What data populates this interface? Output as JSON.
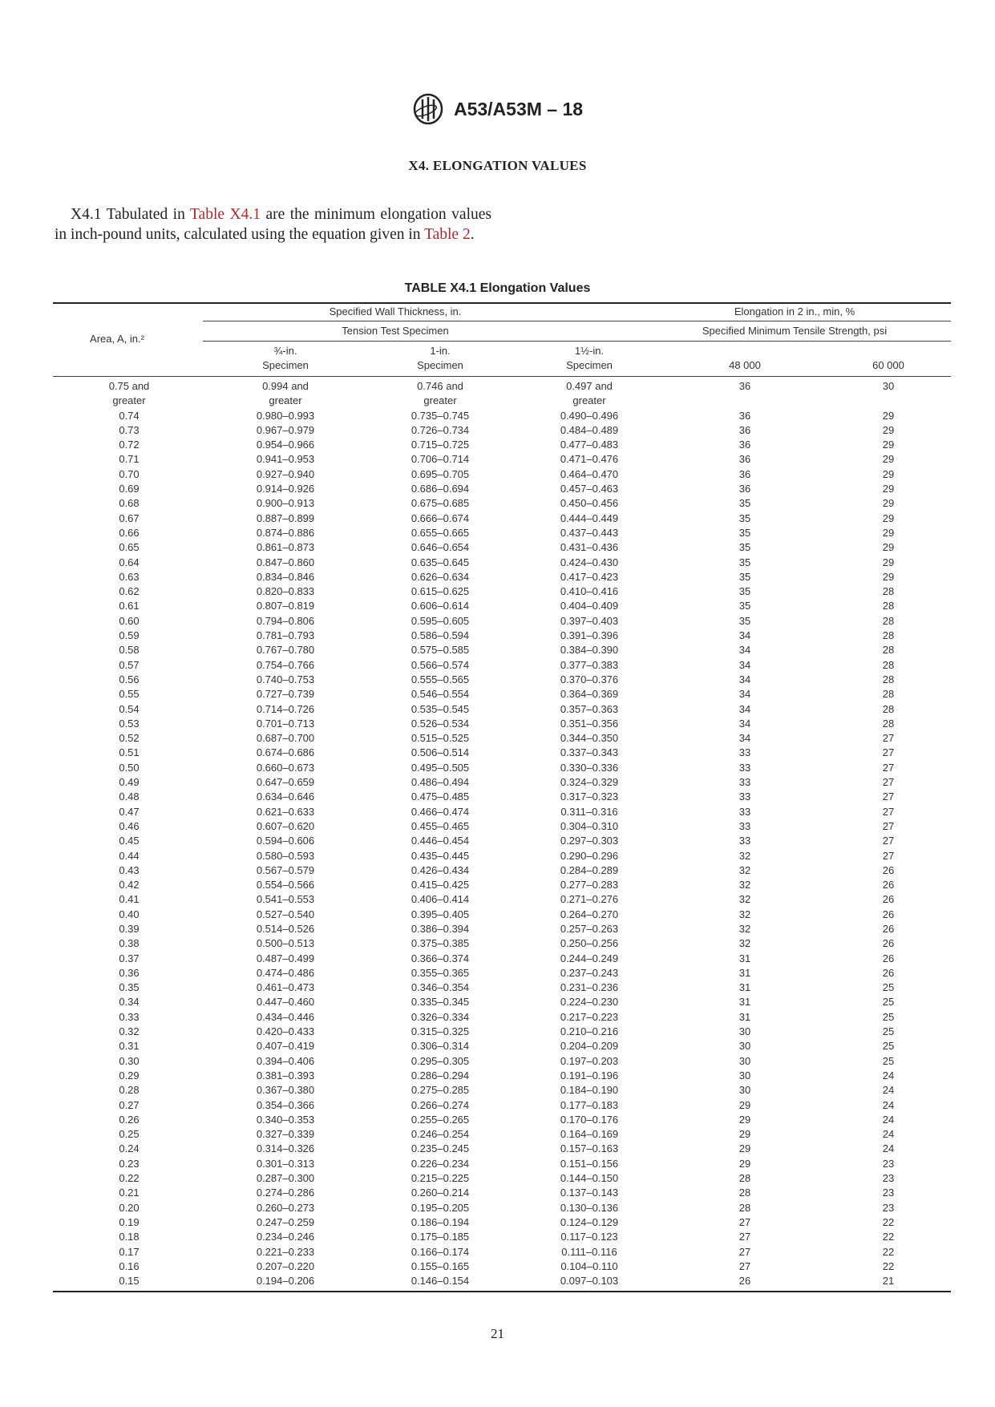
{
  "header": {
    "logo_text": "ASTM",
    "code": "A53/A53M – 18"
  },
  "section_title": "X4. ELONGATION VALUES",
  "paragraph": {
    "lead": "X4.1 Tabulated in ",
    "link1": "Table X4.1",
    "middle": " are the minimum elongation values in inch-pound units, calculated using the equation given in ",
    "link2": "Table 2",
    "end": "."
  },
  "table": {
    "caption": "TABLE X4.1 Elongation Values",
    "headers": {
      "area": "Area, A, in.²",
      "wall_thickness": "Specified Wall Thickness, in.",
      "tension_specimen": "Tension Test Specimen",
      "elongation": "Elongation in 2 in., min, %",
      "tensile_strength": "Specified Minimum Tensile Strength, psi",
      "spec_3_4": [
        "¾-in.",
        "Specimen"
      ],
      "spec_1": [
        "1-in.",
        "Specimen"
      ],
      "spec_1_1_2": [
        "1½-in.",
        "Specimen"
      ],
      "psi_48000": "48 000",
      "psi_60000": "60 000"
    },
    "rows": [
      [
        "0.75 and greater",
        "0.994 and greater",
        "0.746 and greater",
        "0.497 and greater",
        "36",
        "30"
      ],
      [
        "0.74",
        "0.980–0.993",
        "0.735–0.745",
        "0.490–0.496",
        "36",
        "29"
      ],
      [
        "0.73",
        "0.967–0.979",
        "0.726–0.734",
        "0.484–0.489",
        "36",
        "29"
      ],
      [
        "0.72",
        "0.954–0.966",
        "0.715–0.725",
        "0.477–0.483",
        "36",
        "29"
      ],
      [
        "0.71",
        "0.941–0.953",
        "0.706–0.714",
        "0.471–0.476",
        "36",
        "29"
      ],
      [
        "0.70",
        "0.927–0.940",
        "0.695–0.705",
        "0.464–0.470",
        "36",
        "29"
      ],
      [
        "0.69",
        "0.914–0.926",
        "0.686–0.694",
        "0.457–0.463",
        "36",
        "29"
      ],
      [
        "0.68",
        "0.900–0.913",
        "0.675–0.685",
        "0.450–0.456",
        "35",
        "29"
      ],
      [
        "0.67",
        "0.887–0.899",
        "0.666–0.674",
        "0.444–0.449",
        "35",
        "29"
      ],
      [
        "0.66",
        "0.874–0.886",
        "0.655–0.665",
        "0.437–0.443",
        "35",
        "29"
      ],
      [
        "0.65",
        "0.861–0.873",
        "0.646–0.654",
        "0.431–0.436",
        "35",
        "29"
      ],
      [
        "0.64",
        "0.847–0.860",
        "0.635–0.645",
        "0.424–0.430",
        "35",
        "29"
      ],
      [
        "0.63",
        "0.834–0.846",
        "0.626–0.634",
        "0.417–0.423",
        "35",
        "29"
      ],
      [
        "0.62",
        "0.820–0.833",
        "0.615–0.625",
        "0.410–0.416",
        "35",
        "28"
      ],
      [
        "0.61",
        "0.807–0.819",
        "0.606–0.614",
        "0.404–0.409",
        "35",
        "28"
      ],
      [
        "0.60",
        "0.794–0.806",
        "0.595–0.605",
        "0.397–0.403",
        "35",
        "28"
      ],
      [
        "0.59",
        "0.781–0.793",
        "0.586–0.594",
        "0.391–0.396",
        "34",
        "28"
      ],
      [
        "0.58",
        "0.767–0.780",
        "0.575–0.585",
        "0.384–0.390",
        "34",
        "28"
      ],
      [
        "0.57",
        "0.754–0.766",
        "0.566–0.574",
        "0.377–0.383",
        "34",
        "28"
      ],
      [
        "0.56",
        "0.740–0.753",
        "0.555–0.565",
        "0.370–0.376",
        "34",
        "28"
      ],
      [
        "0.55",
        "0.727–0.739",
        "0.546–0.554",
        "0.364–0.369",
        "34",
        "28"
      ],
      [
        "0.54",
        "0.714–0.726",
        "0.535–0.545",
        "0.357–0.363",
        "34",
        "28"
      ],
      [
        "0.53",
        "0.701–0.713",
        "0.526–0.534",
        "0.351–0.356",
        "34",
        "28"
      ],
      [
        "0.52",
        "0.687–0.700",
        "0.515–0.525",
        "0.344–0.350",
        "34",
        "27"
      ],
      [
        "0.51",
        "0.674–0.686",
        "0.506–0.514",
        "0.337–0.343",
        "33",
        "27"
      ],
      [
        "0.50",
        "0.660–0.673",
        "0.495–0.505",
        "0.330–0.336",
        "33",
        "27"
      ],
      [
        "0.49",
        "0.647–0.659",
        "0.486–0.494",
        "0.324–0.329",
        "33",
        "27"
      ],
      [
        "0.48",
        "0.634–0.646",
        "0.475–0.485",
        "0.317–0.323",
        "33",
        "27"
      ],
      [
        "0.47",
        "0.621–0.633",
        "0.466–0.474",
        "0.311–0.316",
        "33",
        "27"
      ],
      [
        "0.46",
        "0.607–0.620",
        "0.455–0.465",
        "0.304–0.310",
        "33",
        "27"
      ],
      [
        "0.45",
        "0.594–0.606",
        "0.446–0.454",
        "0.297–0.303",
        "33",
        "27"
      ],
      [
        "0.44",
        "0.580–0.593",
        "0.435–0.445",
        "0.290–0.296",
        "32",
        "27"
      ],
      [
        "0.43",
        "0.567–0.579",
        "0.426–0.434",
        "0.284–0.289",
        "32",
        "26"
      ],
      [
        "0.42",
        "0.554–0.566",
        "0.415–0.425",
        "0.277–0.283",
        "32",
        "26"
      ],
      [
        "0.41",
        "0.541–0.553",
        "0.406–0.414",
        "0.271–0.276",
        "32",
        "26"
      ],
      [
        "0.40",
        "0.527–0.540",
        "0.395–0.405",
        "0.264–0.270",
        "32",
        "26"
      ],
      [
        "0.39",
        "0.514–0.526",
        "0.386–0.394",
        "0.257–0.263",
        "32",
        "26"
      ],
      [
        "0.38",
        "0.500–0.513",
        "0.375–0.385",
        "0.250–0.256",
        "32",
        "26"
      ],
      [
        "0.37",
        "0.487–0.499",
        "0.366–0.374",
        "0.244–0.249",
        "31",
        "26"
      ],
      [
        "0.36",
        "0.474–0.486",
        "0.355–0.365",
        "0.237–0.243",
        "31",
        "26"
      ],
      [
        "0.35",
        "0.461–0.473",
        "0.346–0.354",
        "0.231–0.236",
        "31",
        "25"
      ],
      [
        "0.34",
        "0.447–0.460",
        "0.335–0.345",
        "0.224–0.230",
        "31",
        "25"
      ],
      [
        "0.33",
        "0.434–0.446",
        "0.326–0.334",
        "0.217–0.223",
        "31",
        "25"
      ],
      [
        "0.32",
        "0.420–0.433",
        "0.315–0.325",
        "0.210–0.216",
        "30",
        "25"
      ],
      [
        "0.31",
        "0.407–0.419",
        "0.306–0.314",
        "0.204–0.209",
        "30",
        "25"
      ],
      [
        "0.30",
        "0.394–0.406",
        "0.295–0.305",
        "0.197–0.203",
        "30",
        "25"
      ],
      [
        "0.29",
        "0.381–0.393",
        "0.286–0.294",
        "0.191–0.196",
        "30",
        "24"
      ],
      [
        "0.28",
        "0.367–0.380",
        "0.275–0.285",
        "0.184–0.190",
        "30",
        "24"
      ],
      [
        "0.27",
        "0.354–0.366",
        "0.266–0.274",
        "0.177–0.183",
        "29",
        "24"
      ],
      [
        "0.26",
        "0.340–0.353",
        "0.255–0.265",
        "0.170–0.176",
        "29",
        "24"
      ],
      [
        "0.25",
        "0.327–0.339",
        "0.246–0.254",
        "0.164–0.169",
        "29",
        "24"
      ],
      [
        "0.24",
        "0.314–0.326",
        "0.235–0.245",
        "0.157–0.163",
        "29",
        "24"
      ],
      [
        "0.23",
        "0.301–0.313",
        "0.226–0.234",
        "0.151–0.156",
        "29",
        "23"
      ],
      [
        "0.22",
        "0.287–0.300",
        "0.215–0.225",
        "0.144–0.150",
        "28",
        "23"
      ],
      [
        "0.21",
        "0.274–0.286",
        "0.260–0.214",
        "0.137–0.143",
        "28",
        "23"
      ],
      [
        "0.20",
        "0.260–0.273",
        "0.195–0.205",
        "0.130–0.136",
        "28",
        "23"
      ],
      [
        "0.19",
        "0.247–0.259",
        "0.186–0.194",
        "0.124–0.129",
        "27",
        "22"
      ],
      [
        "0.18",
        "0.234–0.246",
        "0.175–0.185",
        "0.117–0.123",
        "27",
        "22"
      ],
      [
        "0.17",
        "0.221–0.233",
        "0.166–0.174",
        "0.111–0.116",
        "27",
        "22"
      ],
      [
        "0.16",
        "0.207–0.220",
        "0.155–0.165",
        "0.104–0.110",
        "27",
        "22"
      ],
      [
        "0.15",
        "0.194–0.206",
        "0.146–0.154",
        "0.097–0.103",
        "26",
        "21"
      ]
    ]
  },
  "page_number": "21",
  "colors": {
    "link": "#b0282e",
    "text": "#222222"
  }
}
